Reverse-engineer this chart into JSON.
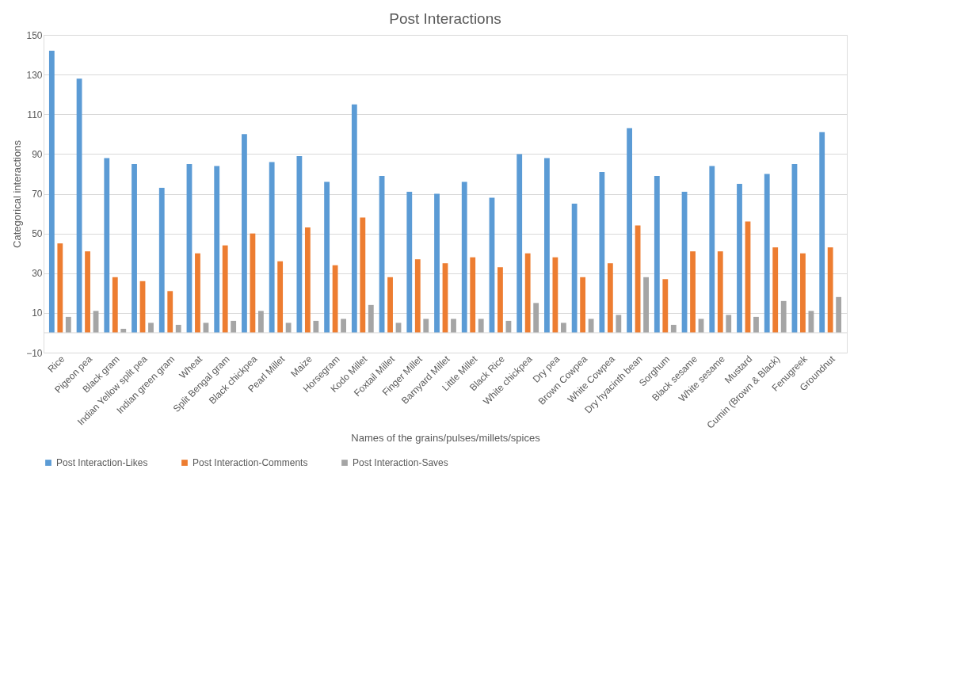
{
  "chart_data": {
    "type": "bar",
    "title": "Post Interactions",
    "xlabel": "Names of the grains/pulses/millets/spices",
    "ylabel": "Categorical interactions",
    "categories": [
      "Rice",
      "Pigeon pea",
      "Black gram",
      "Indian Yellow split pea",
      "Indian green gram",
      "Wheat",
      "Split Bengal gram",
      "Black chickpea",
      "Pearl Millet",
      "Maize",
      "Horsegram",
      "Kodo Millet",
      "Foxtail Millet",
      "Finger Millet",
      "Barnyard Millet",
      "Little Millet",
      "Black Rice",
      "White chickpea",
      "Dry pea",
      "Brown Cowpea",
      "White Cowpea",
      "Dry hyacinth bean",
      "Sorghum",
      "Black sesame",
      "White sesame",
      "Mustard",
      "Cumin (Brown & Black)",
      "Fenugreek",
      "Groundnut"
    ],
    "series": [
      {
        "name": "Post Interaction-Likes",
        "color": "#5b9bd5",
        "values": [
          142,
          128,
          88,
          85,
          73,
          85,
          84,
          100,
          86,
          89,
          76,
          115,
          79,
          71,
          70,
          76,
          68,
          90,
          88,
          65,
          81,
          103,
          79,
          71,
          84,
          75,
          80,
          85,
          101
        ]
      },
      {
        "name": "Post Interaction-Comments",
        "color": "#ed7d31",
        "values": [
          45,
          41,
          28,
          26,
          21,
          40,
          44,
          50,
          36,
          53,
          34,
          58,
          28,
          37,
          35,
          38,
          33,
          40,
          38,
          28,
          35,
          54,
          27,
          41,
          41,
          56,
          43,
          40,
          43
        ]
      },
      {
        "name": "Post Interaction-Saves",
        "color": "#a5a5a5",
        "values": [
          8,
          11,
          2,
          5,
          4,
          5,
          6,
          11,
          5,
          6,
          7,
          14,
          5,
          7,
          7,
          7,
          6,
          15,
          5,
          7,
          9,
          28,
          4,
          7,
          9,
          8,
          16,
          11,
          18
        ]
      }
    ],
    "ylim": [
      -10,
      150
    ],
    "yticks": [
      -10,
      10,
      30,
      50,
      70,
      90,
      110,
      130,
      150
    ],
    "grid": "y",
    "legend": "bottom"
  }
}
